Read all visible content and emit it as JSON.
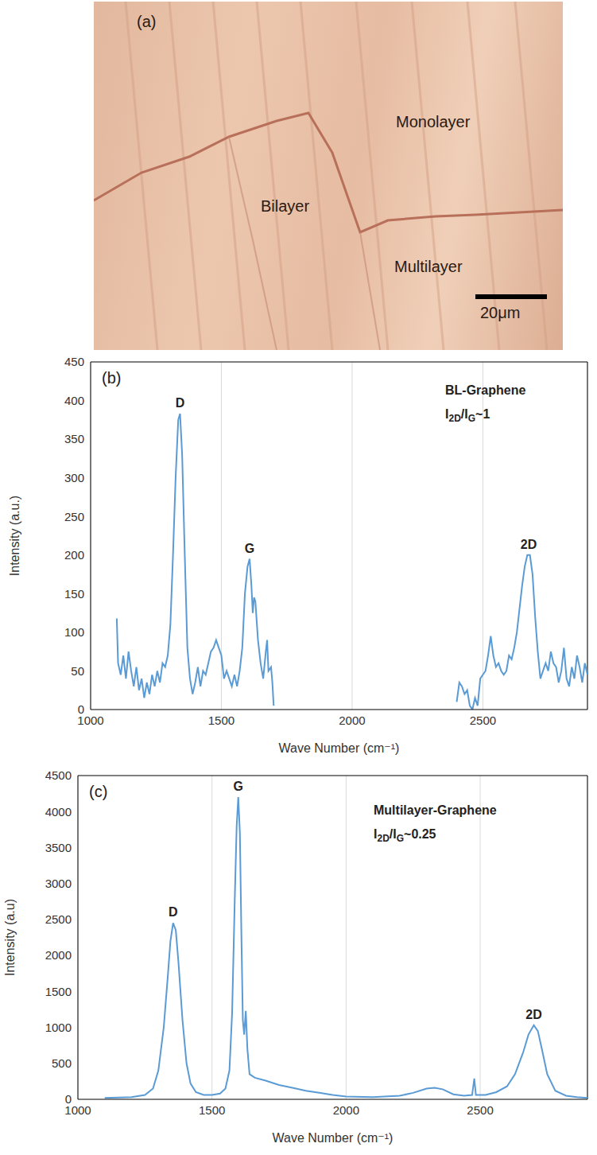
{
  "image_panel": {
    "label": "(a)",
    "regions": [
      "Bilayer",
      "Monolayer",
      "Multilayer"
    ],
    "scale_bar": "20μm"
  },
  "chart_data": [
    {
      "type": "line",
      "panel": "(b)",
      "title": "BL-Graphene",
      "ratio_label": [
        {
          "t": "I"
        },
        {
          "t": "2D",
          "sub": true
        },
        {
          "t": "/I"
        },
        {
          "t": "G",
          "sub": true
        },
        {
          "t": "~1"
        }
      ],
      "x_label": "Wave Number  (cm⁻¹)",
      "y_label": "Intensity (a.u.)",
      "color": "#5b9bd5",
      "grid": true,
      "xlim": [
        1000,
        2900
      ],
      "ylim": [
        0,
        450
      ],
      "xticks": [
        1000,
        1500,
        2000,
        2500
      ],
      "yticks": [
        0,
        50,
        100,
        150,
        200,
        250,
        300,
        350,
        400,
        450
      ],
      "annotations": [
        {
          "text": "D",
          "x": 1342,
          "y": 383
        },
        {
          "text": "G",
          "x": 1608,
          "y": 195
        },
        {
          "text": "2D",
          "x": 2675,
          "y": 200
        }
      ],
      "x": [
        1100,
        1105,
        1115,
        1125,
        1135,
        1145,
        1155,
        1165,
        1175,
        1185,
        1195,
        1205,
        1215,
        1225,
        1235,
        1245,
        1255,
        1265,
        1275,
        1285,
        1295,
        1305,
        1315,
        1325,
        1335,
        1342,
        1350,
        1360,
        1370,
        1380,
        1390,
        1400,
        1410,
        1420,
        1430,
        1440,
        1450,
        1460,
        1470,
        1480,
        1490,
        1500,
        1510,
        1520,
        1530,
        1540,
        1550,
        1560,
        1570,
        1580,
        1590,
        1600,
        1608,
        1615,
        1620,
        1625,
        1630,
        1640,
        1650,
        1660,
        1670,
        1675,
        1680,
        1690,
        1695,
        1700,
        1800,
        2400,
        2410,
        2420,
        2430,
        2440,
        2450,
        2460,
        2470,
        2480,
        2490,
        2500,
        2510,
        2520,
        2530,
        2540,
        2550,
        2560,
        2570,
        2580,
        2590,
        2600,
        2610,
        2620,
        2630,
        2640,
        2650,
        2660,
        2670,
        2680,
        2690,
        2700,
        2710,
        2720,
        2730,
        2740,
        2750,
        2760,
        2770,
        2780,
        2790,
        2800,
        2810,
        2820,
        2830,
        2840,
        2850,
        2860,
        2870,
        2880,
        2890,
        2900
      ],
      "values": [
        118,
        60,
        45,
        70,
        40,
        75,
        50,
        30,
        55,
        25,
        40,
        15,
        35,
        20,
        45,
        30,
        50,
        35,
        60,
        55,
        70,
        110,
        200,
        300,
        375,
        383,
        330,
        200,
        80,
        40,
        20,
        35,
        55,
        30,
        50,
        45,
        60,
        75,
        80,
        90,
        80,
        70,
        40,
        50,
        40,
        30,
        45,
        30,
        50,
        80,
        150,
        185,
        195,
        160,
        125,
        145,
        140,
        90,
        60,
        40,
        75,
        90,
        50,
        55,
        35,
        5,
        null,
        10,
        35,
        30,
        20,
        25,
        5,
        0,
        15,
        5,
        40,
        45,
        50,
        70,
        95,
        70,
        55,
        60,
        50,
        45,
        50,
        70,
        65,
        80,
        100,
        130,
        160,
        185,
        200,
        200,
        175,
        120,
        75,
        40,
        50,
        60,
        50,
        75,
        60,
        55,
        35,
        50,
        80,
        40,
        30,
        55,
        40,
        70,
        55,
        35,
        60,
        45
      ]
    },
    {
      "type": "line",
      "panel": "(c)",
      "title": "Multilayer-Graphene",
      "ratio_label": [
        {
          "t": "I"
        },
        {
          "t": "2D",
          "sub": true
        },
        {
          "t": "/I"
        },
        {
          "t": "G",
          "sub": true
        },
        {
          "t": "~0.25"
        }
      ],
      "x_label": "Wave Number  (cm⁻¹)",
      "y_label": "Intensity (a.u)",
      "color": "#5b9bd5",
      "grid": true,
      "xlim": [
        1000,
        2900
      ],
      "ylim": [
        0,
        4500
      ],
      "xticks": [
        1000,
        1500,
        2000,
        2500
      ],
      "yticks": [
        0,
        500,
        1000,
        1500,
        2000,
        2500,
        3000,
        3500,
        4000,
        4500
      ],
      "annotations": [
        {
          "text": "D",
          "x": 1355,
          "y": 2450
        },
        {
          "text": "G",
          "x": 1598,
          "y": 4200
        },
        {
          "text": "2D",
          "x": 2700,
          "y": 1030
        }
      ],
      "x": [
        1100,
        1200,
        1250,
        1280,
        1300,
        1320,
        1335,
        1345,
        1355,
        1365,
        1375,
        1390,
        1405,
        1420,
        1440,
        1470,
        1500,
        1530,
        1550,
        1565,
        1575,
        1585,
        1592,
        1598,
        1604,
        1610,
        1615,
        1620,
        1626,
        1632,
        1640,
        1660,
        1700,
        1750,
        1800,
        1850,
        1900,
        1950,
        2000,
        2100,
        2200,
        2250,
        2300,
        2330,
        2360,
        2400,
        2440,
        2470,
        2478,
        2484,
        2520,
        2560,
        2600,
        2630,
        2660,
        2680,
        2700,
        2715,
        2730,
        2750,
        2780,
        2820,
        2860,
        2900
      ],
      "values": [
        20,
        30,
        60,
        150,
        400,
        1000,
        1700,
        2200,
        2450,
        2350,
        1900,
        1100,
        500,
        220,
        100,
        60,
        60,
        80,
        150,
        400,
        1200,
        2800,
        3800,
        4200,
        3700,
        2200,
        1100,
        900,
        1230,
        700,
        350,
        300,
        260,
        200,
        160,
        120,
        90,
        60,
        40,
        30,
        50,
        90,
        150,
        160,
        140,
        70,
        50,
        60,
        290,
        60,
        60,
        100,
        180,
        350,
        650,
        900,
        1030,
        950,
        700,
        350,
        120,
        50,
        30,
        20
      ]
    }
  ]
}
